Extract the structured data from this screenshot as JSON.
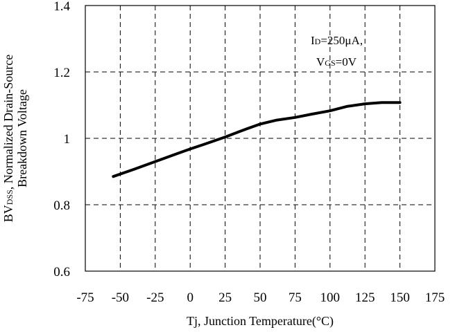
{
  "chart_data": {
    "type": "line",
    "xlabel": "Tj, Junction Temperature(°C)",
    "ylabel": {
      "line1_prefix": "BV",
      "line1_sub": "DSS",
      "line1_suffix": ", Normalized Drain-Source",
      "line2": "Breakdown Voltage"
    },
    "xlim": [
      -75,
      175
    ],
    "ylim": [
      0.6,
      1.4
    ],
    "x_ticks": [
      -75,
      -50,
      -25,
      0,
      25,
      50,
      75,
      100,
      125,
      150,
      175
    ],
    "x_tick_labels": [
      "-75",
      "-50",
      "-25",
      "0",
      "25",
      "50",
      "75",
      "100",
      "125",
      "150",
      "175"
    ],
    "y_ticks": [
      0.6,
      0.8,
      1.0,
      1.2,
      1.4
    ],
    "y_tick_labels": [
      "0.6",
      "0.8",
      "1",
      "1.2",
      "1.4"
    ],
    "grid": true,
    "annotation": {
      "line1_prefix": "I",
      "line1_sub": "D",
      "line1_suffix": "=250μA,",
      "line2_prefix": "V",
      "line2_sub": "GS",
      "line2_suffix": "=0V"
    },
    "series": [
      {
        "x": [
          -55,
          -40,
          -25,
          -10,
          0,
          10,
          25,
          35,
          40,
          50,
          62,
          75,
          87,
          100,
          112,
          125,
          137,
          150
        ],
        "y": [
          0.885,
          0.907,
          0.93,
          0.953,
          0.968,
          0.982,
          1.004,
          1.02,
          1.028,
          1.043,
          1.055,
          1.063,
          1.073,
          1.083,
          1.096,
          1.104,
          1.108,
          1.108
        ]
      }
    ]
  }
}
